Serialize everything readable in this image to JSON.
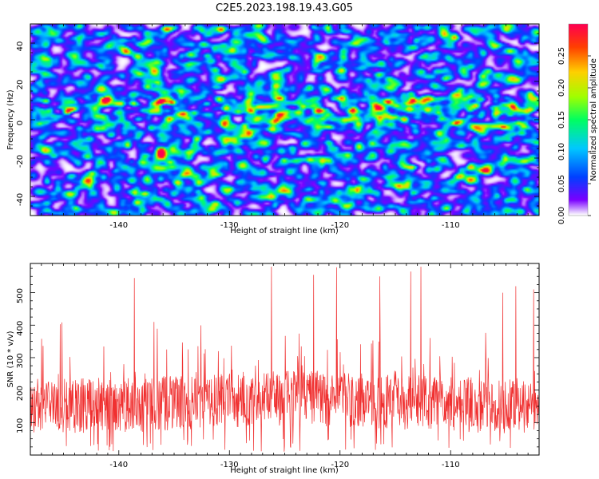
{
  "figure": {
    "title": "C2E5.2023.198.19.43.G05"
  },
  "chart_data": [
    {
      "type": "heatmap",
      "panel": "top",
      "xlabel": "Height of straight line (km)",
      "ylabel": "Frequency (Hz)",
      "xlim": [
        -148,
        -102
      ],
      "ylim": [
        -50,
        50
      ],
      "xticks": [
        -140,
        -130,
        -120,
        -110
      ],
      "yticks": [
        -40,
        -20,
        0,
        20,
        40
      ],
      "colorbar": {
        "label": "Normalized spectral amplitude",
        "range": [
          0,
          0.3
        ],
        "ticks": [
          "0.00",
          "0.05",
          "0.10",
          "0.15",
          "0.20",
          "0.25"
        ],
        "tick_values": [
          0,
          0.05,
          0.1,
          0.15,
          0.2,
          0.25
        ],
        "colormap": [
          "#ffffff",
          "#7a00ff",
          "#0040ff",
          "#00c8ff",
          "#00ff60",
          "#a0ff00",
          "#ffd000",
          "#ff4000",
          "#ff0050"
        ]
      },
      "hotspots": [
        {
          "x": -122,
          "y": 5,
          "amp": 0.28
        },
        {
          "x": -125.5,
          "y": 3,
          "amp": 0.2
        },
        {
          "x": -119,
          "y": 5,
          "amp": 0.17
        },
        {
          "x": -112,
          "y": 6,
          "amp": 0.15
        },
        {
          "x": -127.5,
          "y": 1,
          "amp": 0.14
        },
        {
          "x": -113.5,
          "y": 11,
          "amp": 0.13
        },
        {
          "x": -106,
          "y": 3,
          "amp": 0.11
        }
      ]
    },
    {
      "type": "line",
      "panel": "bottom",
      "xlabel": "Height of straight line (km)",
      "ylabel": "SNR (10 * v/v)",
      "xlim": [
        -148,
        -102
      ],
      "ylim": [
        0,
        590
      ],
      "xticks": [
        -140,
        -130,
        -120,
        -110
      ],
      "yticks": [
        100,
        200,
        300,
        400,
        500
      ],
      "color": "#f03030",
      "baseline_mean": 150,
      "peaks": [
        {
          "x": -138.6,
          "y": 545
        },
        {
          "x": -126.2,
          "y": 580
        },
        {
          "x": -122.4,
          "y": 555
        },
        {
          "x": -120.3,
          "y": 578
        },
        {
          "x": -116.4,
          "y": 550
        },
        {
          "x": -112.7,
          "y": 580
        },
        {
          "x": -113.6,
          "y": 565
        },
        {
          "x": -104.1,
          "y": 520
        },
        {
          "x": -105.3,
          "y": 500
        },
        {
          "x": -102.5,
          "y": 510
        }
      ]
    }
  ]
}
